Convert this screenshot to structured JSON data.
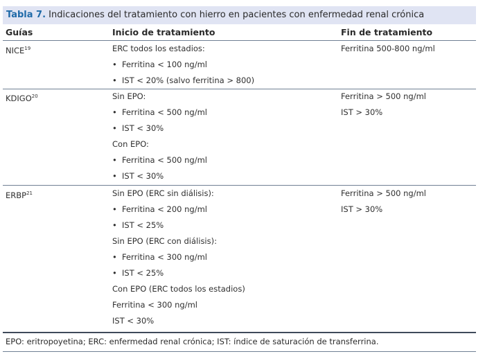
{
  "table_title": {
    "label": "Tabla 7.",
    "text": "Indicaciones del tratamiento con hierro en pacientes con enfermedad renal crónica"
  },
  "columns": {
    "guias": "Guías",
    "inicio": "Inicio de tratamiento",
    "fin": "Fin de tratamiento"
  },
  "bullet_glyph": "•",
  "rows": [
    {
      "guia": "NICE",
      "ref": "19",
      "inicio": [
        {
          "text": "ERC todos los estadios:",
          "bullet": false
        },
        {
          "text": "Ferritina < 100 ng/ml",
          "bullet": true
        },
        {
          "text": "IST < 20% (salvo ferritina > 800)",
          "bullet": true
        }
      ],
      "fin": [
        "Ferritina 500-800 ng/ml"
      ]
    },
    {
      "guia": "KDIGO",
      "ref": "20",
      "inicio": [
        {
          "text": "Sin EPO:",
          "bullet": false
        },
        {
          "text": "Ferritina < 500 ng/ml",
          "bullet": true
        },
        {
          "text": "IST < 30%",
          "bullet": true
        },
        {
          "text": "Con EPO:",
          "bullet": false
        },
        {
          "text": "Ferritina < 500 ng/ml",
          "bullet": true
        },
        {
          "text": "IST < 30%",
          "bullet": true
        }
      ],
      "fin": [
        "Ferritina > 500 ng/ml",
        "IST > 30%"
      ]
    },
    {
      "guia": "ERBP",
      "ref": "21",
      "inicio": [
        {
          "text": "Sin EPO (ERC sin diálisis):",
          "bullet": false
        },
        {
          "text": "Ferritina < 200 ng/ml",
          "bullet": true
        },
        {
          "text": "IST < 25%",
          "bullet": true
        },
        {
          "text": "Sin EPO (ERC con diálisis):",
          "bullet": false
        },
        {
          "text": "Ferritina < 300 ng/ml",
          "bullet": true
        },
        {
          "text": "IST < 25%",
          "bullet": true
        },
        {
          "text": "Con EPO (ERC todos los estadios)",
          "bullet": false
        },
        {
          "text": "Ferritina < 300 ng/ml",
          "bullet": false
        },
        {
          "text": "IST < 30%",
          "bullet": false
        }
      ],
      "fin": [
        "Ferritina > 500 ng/ml",
        "IST > 30%"
      ]
    }
  ],
  "footnote": "EPO: eritropoyetina; ERC: enfermedad renal crónica; IST: índice de saturación de transferrina.",
  "colors": {
    "title_background": "#e0e4f3",
    "title_label": "#1f6aa8",
    "rule": "#6f7f93"
  }
}
